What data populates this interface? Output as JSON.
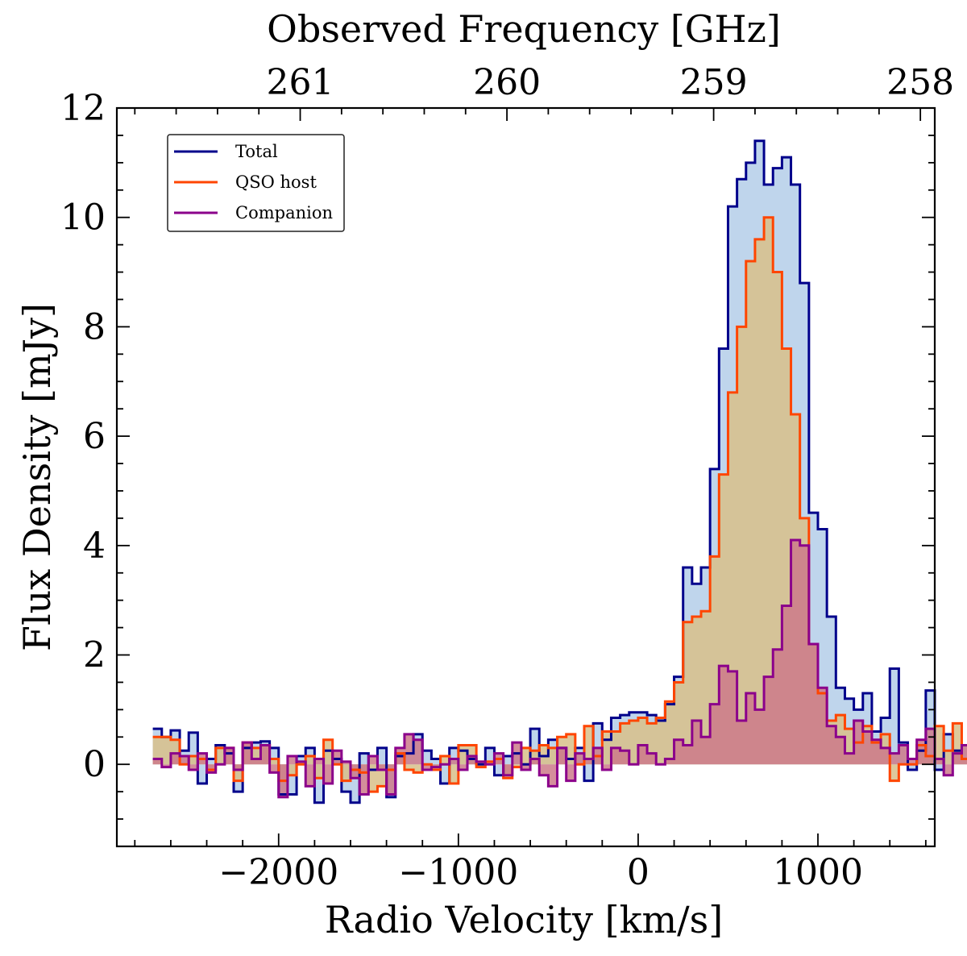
{
  "chart_data": {
    "type": "line",
    "style": "step-histogram-filled",
    "xlabel": "Radio Velocity [km/s]",
    "ylabel": "Flux Density [mJy]",
    "top_xlabel": "Observed Frequency [GHz]",
    "xlim": [
      -2900,
      1650
    ],
    "ylim": [
      -1.5,
      12
    ],
    "x_ticks": [
      -2000,
      -1000,
      0,
      1000
    ],
    "x_tick_labels": [
      "−2000",
      "−1000",
      "0",
      "1000"
    ],
    "y_ticks": [
      0,
      2,
      4,
      6,
      8,
      10,
      12
    ],
    "y_tick_labels": [
      "0",
      "2",
      "4",
      "6",
      "8",
      "10",
      "12"
    ],
    "top_ticks": [
      {
        "label": "261",
        "velocity": -1880
      },
      {
        "label": "260",
        "velocity": -730
      },
      {
        "label": "259",
        "velocity": 420
      },
      {
        "label": "258",
        "velocity": 1570
      }
    ],
    "legend": {
      "position": "top-left",
      "entries": [
        "Total",
        "QSO host",
        "Companion"
      ]
    },
    "bin_start": -2700,
    "bin_width": 50,
    "series": [
      {
        "name": "Total",
        "line_color": "#00008b",
        "fill_color": "#a9c7e6",
        "values": [
          0.65,
          0.5,
          0.62,
          0.25,
          0.58,
          -0.35,
          0.1,
          0.35,
          0.2,
          -0.5,
          0.3,
          0.4,
          0.42,
          0.3,
          -0.55,
          -0.55,
          0.15,
          0.3,
          -0.7,
          0.25,
          0.1,
          -0.5,
          -0.7,
          0.2,
          -0.1,
          0.3,
          -0.6,
          0.15,
          0.2,
          0.55,
          0.25,
          0.1,
          -0.35,
          0.3,
          0.25,
          0.1,
          0.0,
          0.3,
          -0.2,
          0.15,
          0.2,
          0.0,
          0.65,
          0.15,
          0.45,
          0.3,
          0.1,
          0.3,
          -0.3,
          0.75,
          0.45,
          0.85,
          0.9,
          0.95,
          0.95,
          0.9,
          0.8,
          1.1,
          1.6,
          3.6,
          3.3,
          3.6,
          5.4,
          7.6,
          10.2,
          10.7,
          11.0,
          11.4,
          10.6,
          10.9,
          11.1,
          10.6,
          8.8,
          4.6,
          4.3,
          2.7,
          1.4,
          1.2,
          1.0,
          1.3,
          0.6,
          0.85,
          1.75,
          0.4,
          -0.1,
          0.25,
          1.35,
          -0.1,
          0.55,
          0.25,
          0.35,
          0.45,
          0.85,
          0.35,
          -0.95,
          0.9,
          -0.25,
          0.05,
          0.15,
          -0.15,
          0.35,
          0.3,
          0.1
        ]
      },
      {
        "name": "QSO host",
        "line_color": "#ff4500",
        "fill_color": "#d8c08a",
        "values": [
          0.5,
          0.5,
          0.45,
          0.0,
          0.15,
          0.1,
          -0.1,
          0.3,
          0.3,
          -0.3,
          0.4,
          0.3,
          0.35,
          0.1,
          -0.3,
          -0.2,
          0.0,
          0.15,
          -0.25,
          0.45,
          0.0,
          -0.3,
          -0.1,
          -0.15,
          -0.5,
          -0.4,
          -0.1,
          0.2,
          -0.1,
          -0.15,
          0.0,
          -0.1,
          0.15,
          -0.35,
          0.35,
          0.35,
          -0.05,
          0.05,
          0.1,
          -0.25,
          -0.05,
          0.3,
          0.25,
          0.35,
          0.3,
          0.5,
          0.55,
          0.0,
          0.7,
          0.15,
          0.6,
          0.6,
          0.75,
          0.8,
          0.85,
          0.75,
          0.85,
          1.15,
          1.5,
          2.6,
          2.7,
          2.8,
          3.8,
          5.3,
          6.8,
          8.0,
          9.2,
          9.6,
          10.0,
          9.0,
          7.6,
          6.4,
          4.5,
          2.2,
          1.3,
          0.8,
          0.9,
          0.65,
          0.4,
          0.7,
          0.4,
          0.55,
          -0.3,
          0.0,
          0.0,
          0.35,
          0.15,
          0.7,
          0.25,
          0.75,
          0.1,
          0.7,
          0.4,
          0.65,
          0.2,
          0.75,
          -0.5,
          0.15,
          -0.2,
          0.05,
          -0.05,
          0.3,
          -0.3
        ]
      },
      {
        "name": "Companion",
        "line_color": "#8b008b",
        "fill_color": "#cc7a8a",
        "values": [
          0.1,
          -0.05,
          0.2,
          0.15,
          -0.1,
          0.2,
          -0.15,
          0.0,
          0.3,
          -0.1,
          0.4,
          0.1,
          0.35,
          -0.15,
          -0.6,
          0.15,
          0.05,
          -0.4,
          0.1,
          -0.35,
          0.25,
          0.05,
          -0.25,
          -0.55,
          0.15,
          -0.1,
          -0.55,
          0.3,
          0.55,
          0.45,
          -0.1,
          -0.05,
          0.0,
          0.1,
          -0.1,
          0.15,
          0.05,
          0.0,
          0.2,
          -0.2,
          0.4,
          -0.1,
          0.1,
          -0.2,
          -0.4,
          0.3,
          -0.3,
          0.2,
          0.1,
          0.3,
          -0.1,
          0.3,
          0.25,
          0.0,
          0.35,
          0.2,
          0.0,
          0.1,
          0.45,
          0.35,
          0.8,
          0.5,
          1.1,
          1.8,
          1.7,
          0.8,
          1.3,
          1.0,
          1.6,
          2.1,
          2.9,
          4.1,
          4.0,
          2.2,
          1.4,
          0.7,
          0.5,
          0.2,
          0.8,
          0.6,
          0.45,
          0.3,
          0.2,
          0.35,
          0.1,
          0.45,
          0.65,
          0.1,
          -0.2,
          0.2,
          0.35,
          -0.1,
          0.25,
          0.2,
          -0.4,
          -0.7,
          0.0,
          -0.25,
          0.0,
          -0.25,
          0.15,
          0.15,
          0.3
        ]
      }
    ]
  }
}
